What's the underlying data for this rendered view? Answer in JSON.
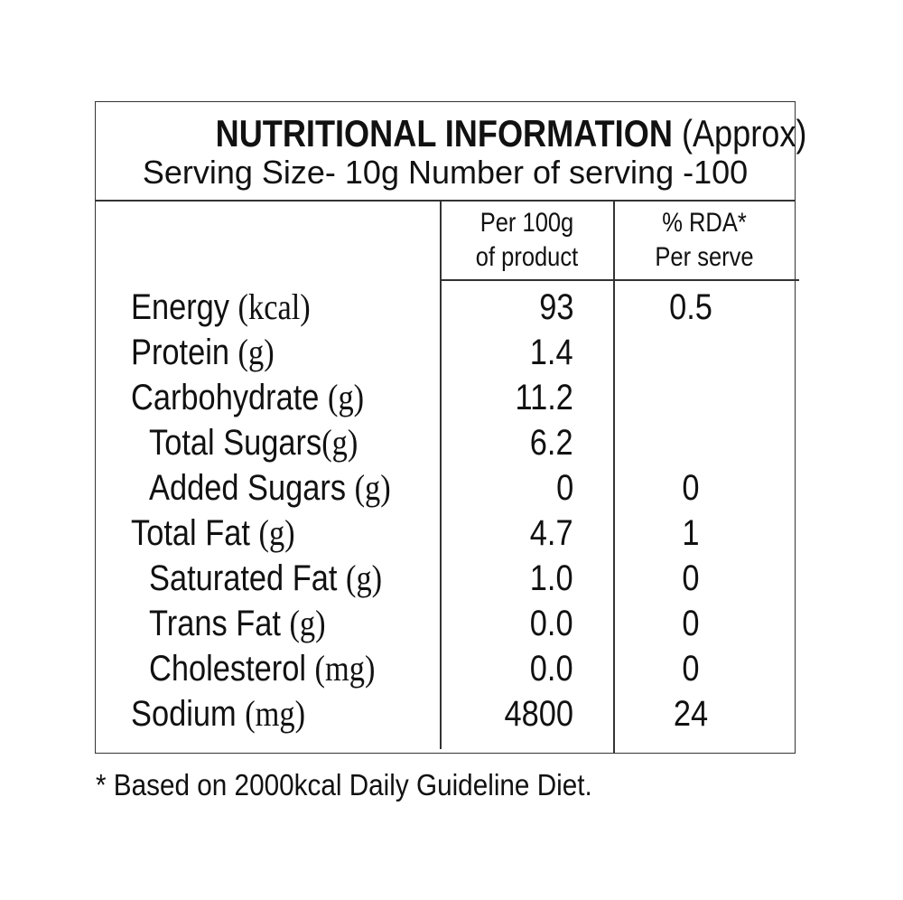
{
  "header": {
    "title": "NUTRITIONAL INFORMATION",
    "title_suffix": "(Approx)",
    "serving": "Serving Size- 10g  Number of serving -100"
  },
  "columns": {
    "per100_line1": "Per 100g",
    "per100_line2": "of product",
    "rda_line1": "%  RDA*",
    "rda_line2": "Per serve"
  },
  "rows": [
    {
      "name": "Energy ",
      "unit": "(kcal)",
      "per100": "93",
      "rda": "0.5",
      "indent": false
    },
    {
      "name": "Protein ",
      "unit": "(g)",
      "per100": "1.4",
      "rda": "",
      "indent": false
    },
    {
      "name": "Carbohydrate ",
      "unit": "(g)",
      "per100": "11.2",
      "rda": "",
      "indent": false
    },
    {
      "name": "Total Sugars",
      "unit": "(g)",
      "per100": "6.2",
      "rda": "",
      "indent": true
    },
    {
      "name": "Added Sugars ",
      "unit": "(g)",
      "per100": "0",
      "rda": "0",
      "indent": true
    },
    {
      "name": "Total Fat ",
      "unit": "(g)",
      "per100": "4.7",
      "rda": "1",
      "indent": false
    },
    {
      "name": "Saturated Fat ",
      "unit": "(g)",
      "per100": "1.0",
      "rda": "0",
      "indent": true
    },
    {
      "name": "Trans Fat ",
      "unit": "(g)",
      "per100": "0.0",
      "rda": "0",
      "indent": true
    },
    {
      "name": "Cholesterol ",
      "unit": "(mg)",
      "per100": "0.0",
      "rda": "0",
      "indent": true
    },
    {
      "name": "Sodium ",
      "unit": "(mg)",
      "per100": "4800",
      "rda": "24",
      "indent": false
    }
  ],
  "footnote": "* Based on 2000kcal Daily Guideline Diet."
}
